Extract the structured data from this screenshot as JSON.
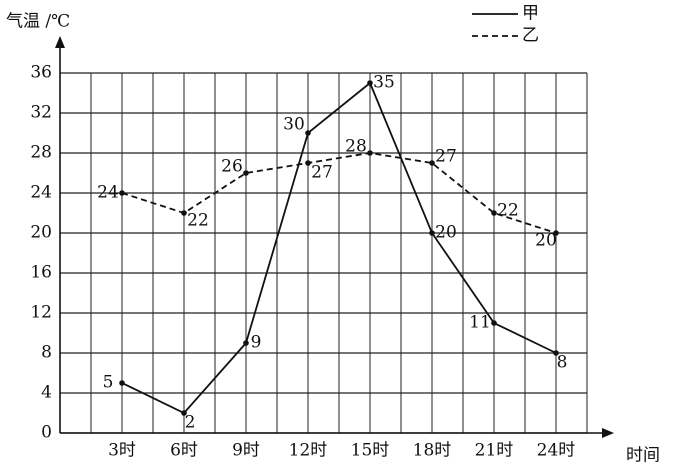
{
  "chart_data": {
    "type": "line",
    "y_label": "气温 /℃",
    "x_label": "时间",
    "categories": [
      "3时",
      "6时",
      "9时",
      "12时",
      "15时",
      "18时",
      "21时",
      "24时"
    ],
    "series": [
      {
        "name": "甲",
        "color": "#111111",
        "dash": "solid",
        "values": [
          5,
          2,
          9,
          30,
          35,
          20,
          11,
          8
        ]
      },
      {
        "name": "乙",
        "color": "#111111",
        "dash": "dashed",
        "values": [
          24,
          22,
          26,
          27,
          28,
          27,
          22,
          20
        ]
      }
    ],
    "ylim": [
      0,
      36
    ],
    "yticks": [
      0,
      4,
      8,
      12,
      16,
      20,
      24,
      28,
      32,
      36
    ],
    "grid": true
  }
}
